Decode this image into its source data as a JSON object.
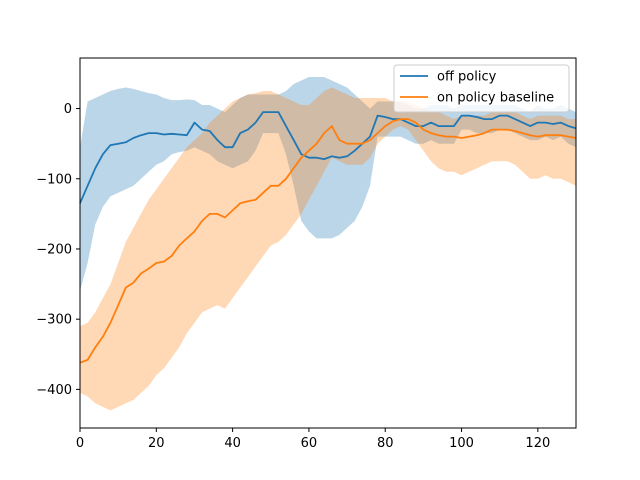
{
  "chart_data": {
    "type": "line",
    "title": "",
    "xlabel": "",
    "ylabel": "",
    "xlim": [
      0,
      130
    ],
    "ylim": [
      -455,
      72
    ],
    "x_ticks": [
      0,
      20,
      40,
      60,
      80,
      100,
      120
    ],
    "y_ticks": [
      0,
      -100,
      -200,
      -300,
      -400
    ],
    "x_tick_labels": [
      "0",
      "20",
      "40",
      "60",
      "80",
      "100",
      "120"
    ],
    "y_tick_labels": [
      "0",
      "−100",
      "−200",
      "−300",
      "−400"
    ],
    "grid": false,
    "legend": {
      "position": "top-right"
    },
    "series": [
      {
        "name": "off policy",
        "color": "#1f77b4",
        "band_color": "#1f77b4",
        "x": [
          0,
          2,
          4,
          6,
          8,
          10,
          12,
          14,
          16,
          18,
          20,
          22,
          24,
          26,
          28,
          30,
          32,
          34,
          36,
          38,
          40,
          42,
          44,
          46,
          48,
          50,
          52,
          54,
          56,
          58,
          60,
          62,
          64,
          66,
          68,
          70,
          72,
          74,
          76,
          78,
          80,
          82,
          84,
          86,
          88,
          90,
          92,
          94,
          96,
          98,
          100,
          102,
          104,
          106,
          108,
          110,
          112,
          114,
          116,
          118,
          120,
          122,
          124,
          126,
          128,
          130
        ],
        "values": [
          -135,
          -110,
          -85,
          -65,
          -52,
          -50,
          -48,
          -42,
          -38,
          -35,
          -35,
          -37,
          -36,
          -37,
          -38,
          -20,
          -30,
          -32,
          -45,
          -55,
          -55,
          -35,
          -30,
          -20,
          -5,
          -5,
          -5,
          -25,
          -45,
          -65,
          -70,
          -70,
          -72,
          -68,
          -70,
          -68,
          -60,
          -50,
          -40,
          -10,
          -12,
          -15,
          -15,
          -20,
          -25,
          -25,
          -20,
          -25,
          -25,
          -25,
          -10,
          -10,
          -12,
          -15,
          -15,
          -10,
          -10,
          -15,
          -20,
          -25,
          -20,
          -20,
          -22,
          -20,
          -25,
          -28
        ],
        "upper": [
          -55,
          10,
          15,
          20,
          25,
          28,
          30,
          28,
          25,
          22,
          20,
          15,
          12,
          12,
          13,
          12,
          5,
          5,
          0,
          -5,
          5,
          15,
          20,
          20,
          20,
          20,
          20,
          25,
          35,
          40,
          45,
          45,
          45,
          40,
          35,
          30,
          20,
          10,
          0,
          10,
          10,
          10,
          10,
          5,
          0,
          0,
          5,
          5,
          5,
          0,
          5,
          5,
          5,
          5,
          5,
          5,
          5,
          5,
          0,
          -5,
          5,
          0,
          0,
          5,
          0,
          -5
        ],
        "lower": [
          -260,
          -220,
          -165,
          -140,
          -125,
          -120,
          -115,
          -110,
          -100,
          -90,
          -80,
          -75,
          -65,
          -62,
          -60,
          -55,
          -60,
          -65,
          -75,
          -80,
          -85,
          -80,
          -75,
          -60,
          -35,
          -35,
          -35,
          -65,
          -110,
          -160,
          -175,
          -185,
          -185,
          -185,
          -180,
          -170,
          -160,
          -140,
          -110,
          -40,
          -40,
          -40,
          -40,
          -45,
          -50,
          -50,
          -45,
          -50,
          -50,
          -50,
          -30,
          -30,
          -35,
          -35,
          -35,
          -30,
          -30,
          -35,
          -40,
          -45,
          -45,
          -40,
          -45,
          -40,
          -50,
          -55
        ]
      },
      {
        "name": "on policy baseline",
        "color": "#ff7f0e",
        "band_color": "#ff7f0e",
        "x": [
          0,
          2,
          4,
          6,
          8,
          10,
          12,
          14,
          16,
          18,
          20,
          22,
          24,
          26,
          28,
          30,
          32,
          34,
          36,
          38,
          40,
          42,
          44,
          46,
          48,
          50,
          52,
          54,
          56,
          58,
          60,
          62,
          64,
          66,
          68,
          70,
          72,
          74,
          76,
          78,
          80,
          82,
          84,
          86,
          88,
          90,
          92,
          94,
          96,
          98,
          100,
          102,
          104,
          106,
          108,
          110,
          112,
          114,
          116,
          118,
          120,
          122,
          124,
          126,
          128,
          130
        ],
        "values": [
          -362,
          -358,
          -340,
          -325,
          -305,
          -280,
          -255,
          -248,
          -235,
          -228,
          -220,
          -218,
          -210,
          -195,
          -185,
          -175,
          -160,
          -150,
          -150,
          -155,
          -145,
          -135,
          -132,
          -130,
          -120,
          -110,
          -110,
          -100,
          -85,
          -70,
          -60,
          -50,
          -35,
          -25,
          -45,
          -50,
          -50,
          -50,
          -45,
          -35,
          -25,
          -18,
          -15,
          -15,
          -20,
          -30,
          -35,
          -38,
          -40,
          -40,
          -42,
          -40,
          -38,
          -35,
          -30,
          -30,
          -30,
          -32,
          -35,
          -38,
          -40,
          -38,
          -38,
          -38,
          -40,
          -42
        ],
        "upper": [
          -310,
          -305,
          -290,
          -270,
          -250,
          -220,
          -190,
          -170,
          -150,
          -130,
          -115,
          -100,
          -85,
          -70,
          -55,
          -45,
          -35,
          -20,
          -10,
          0,
          10,
          15,
          20,
          22,
          25,
          25,
          20,
          15,
          10,
          5,
          5,
          15,
          25,
          30,
          25,
          20,
          15,
          15,
          15,
          15,
          15,
          10,
          10,
          10,
          5,
          0,
          -5,
          -5,
          -10,
          -15,
          -10,
          -10,
          -10,
          -10,
          -5,
          -5,
          -5,
          -5,
          -10,
          -15,
          -10,
          -10,
          -10,
          -10,
          -15,
          -15
        ],
        "lower": [
          -405,
          -410,
          -420,
          -425,
          -430,
          -425,
          -420,
          -415,
          -405,
          -395,
          -380,
          -370,
          -355,
          -340,
          -320,
          -305,
          -290,
          -285,
          -280,
          -285,
          -270,
          -255,
          -240,
          -225,
          -210,
          -195,
          -190,
          -180,
          -165,
          -150,
          -130,
          -110,
          -90,
          -70,
          -75,
          -80,
          -80,
          -80,
          -70,
          -50,
          -40,
          -30,
          -25,
          -30,
          -45,
          -60,
          -75,
          -85,
          -90,
          -90,
          -95,
          -90,
          -85,
          -80,
          -75,
          -75,
          -75,
          -80,
          -90,
          -100,
          -100,
          -95,
          -100,
          -100,
          -105,
          -110
        ]
      }
    ]
  }
}
